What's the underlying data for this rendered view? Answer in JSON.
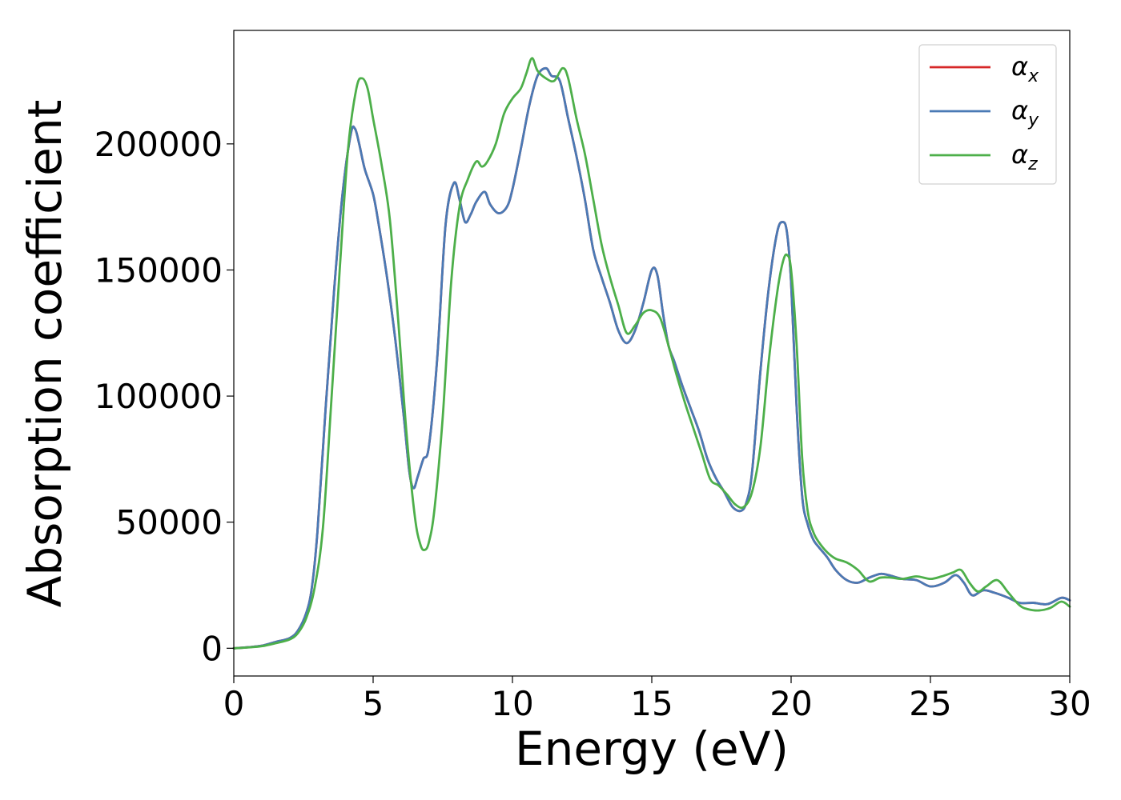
{
  "chart_data": {
    "type": "line",
    "title": "",
    "xlabel": "Energy (eV)",
    "ylabel": "Absorption coefficient",
    "xlim": [
      0,
      30
    ],
    "ylim": [
      -11000,
      245000
    ],
    "xticks": [
      0,
      5,
      10,
      15,
      20,
      25,
      30
    ],
    "yticks": [
      0,
      50000,
      100000,
      150000,
      200000
    ],
    "xtick_labels": [
      "0",
      "5",
      "10",
      "15",
      "20",
      "25",
      "30"
    ],
    "ytick_labels": [
      "0",
      "50000",
      "100000",
      "150000",
      "200000"
    ],
    "grid": false,
    "legend_position": "top-right",
    "series": [
      {
        "name": "αx",
        "legend_main": "α",
        "legend_sub": "x",
        "color": "#d62728",
        "x": [
          0,
          0.5,
          1.0,
          1.5,
          2.0,
          2.3,
          2.6,
          2.8,
          3.0,
          3.3,
          3.6,
          3.9,
          4.2,
          4.35,
          4.5,
          4.7,
          5.0,
          5.2,
          5.5,
          5.8,
          6.1,
          6.3,
          6.45,
          6.6,
          6.8,
          7.0,
          7.3,
          7.6,
          7.9,
          8.1,
          8.3,
          8.5,
          8.7,
          9.0,
          9.2,
          9.5,
          9.8,
          10.0,
          10.3,
          10.6,
          10.9,
          11.2,
          11.4,
          11.7,
          12.0,
          12.3,
          12.6,
          12.9,
          13.2,
          13.5,
          13.8,
          14.1,
          14.4,
          14.7,
          15.0,
          15.2,
          15.4,
          15.6,
          15.8,
          16.1,
          16.4,
          16.7,
          17.0,
          17.3,
          17.6,
          17.9,
          18.2,
          18.4,
          18.6,
          18.9,
          19.2,
          19.5,
          19.7,
          19.85,
          20.0,
          20.2,
          20.4,
          20.6,
          20.8,
          21.0,
          21.3,
          21.6,
          22.0,
          22.4,
          22.8,
          23.2,
          23.5,
          24.0,
          24.5,
          25.0,
          25.5,
          25.9,
          26.2,
          26.5,
          26.9,
          27.3,
          27.8,
          28.2,
          28.7,
          29.2,
          29.7,
          30.0
        ],
        "values": [
          0,
          400,
          1000,
          2500,
          4000,
          7000,
          14000,
          24000,
          46000,
          96000,
          142000,
          180000,
          204000,
          206000,
          200000,
          190000,
          180000,
          168000,
          147000,
          122000,
          92000,
          70000,
          63500,
          68000,
          75000,
          80000,
          115000,
          168000,
          184500,
          178000,
          169000,
          172000,
          177000,
          181000,
          176000,
          172500,
          175000,
          182000,
          198000,
          215000,
          227000,
          230000,
          227000,
          225000,
          210000,
          195000,
          178000,
          158000,
          147000,
          137000,
          126000,
          121000,
          126000,
          137000,
          150000,
          148000,
          133000,
          120000,
          114000,
          104000,
          95000,
          86000,
          75000,
          67500,
          62000,
          56000,
          54500,
          58000,
          70000,
          110000,
          143000,
          165000,
          169000,
          165000,
          145000,
          95000,
          60000,
          49000,
          43000,
          40000,
          36000,
          31000,
          27000,
          26000,
          28000,
          29500,
          29000,
          27500,
          27000,
          24500,
          26000,
          29000,
          26000,
          21000,
          23000,
          22000,
          20000,
          18000,
          18000,
          17500,
          20000,
          19000
        ]
      },
      {
        "name": "αy",
        "legend_main": "α",
        "legend_sub": "y",
        "color": "#4a7ab5",
        "x": [
          0,
          0.5,
          1.0,
          1.5,
          2.0,
          2.3,
          2.6,
          2.8,
          3.0,
          3.3,
          3.6,
          3.9,
          4.2,
          4.35,
          4.5,
          4.7,
          5.0,
          5.2,
          5.5,
          5.8,
          6.1,
          6.3,
          6.45,
          6.6,
          6.8,
          7.0,
          7.3,
          7.6,
          7.9,
          8.1,
          8.3,
          8.5,
          8.7,
          9.0,
          9.2,
          9.5,
          9.8,
          10.0,
          10.3,
          10.6,
          10.9,
          11.2,
          11.4,
          11.7,
          12.0,
          12.3,
          12.6,
          12.9,
          13.2,
          13.5,
          13.8,
          14.1,
          14.4,
          14.7,
          15.0,
          15.2,
          15.4,
          15.6,
          15.8,
          16.1,
          16.4,
          16.7,
          17.0,
          17.3,
          17.6,
          17.9,
          18.2,
          18.4,
          18.6,
          18.9,
          19.2,
          19.5,
          19.7,
          19.85,
          20.0,
          20.2,
          20.4,
          20.6,
          20.8,
          21.0,
          21.3,
          21.6,
          22.0,
          22.4,
          22.8,
          23.2,
          23.5,
          24.0,
          24.5,
          25.0,
          25.5,
          25.9,
          26.2,
          26.5,
          26.9,
          27.3,
          27.8,
          28.2,
          28.7,
          29.2,
          29.7,
          30.0
        ],
        "values": [
          0,
          400,
          1000,
          2500,
          4000,
          7000,
          14000,
          24000,
          46000,
          96000,
          142000,
          180000,
          204000,
          206000,
          200000,
          190000,
          180000,
          168000,
          147000,
          122000,
          92000,
          70000,
          63500,
          68000,
          75000,
          80000,
          115000,
          168000,
          184500,
          178000,
          169000,
          172000,
          177000,
          181000,
          176000,
          172500,
          175000,
          182000,
          198000,
          215000,
          227000,
          230000,
          227000,
          225000,
          210000,
          195000,
          178000,
          158000,
          147000,
          137000,
          126000,
          121000,
          126000,
          137000,
          150000,
          148000,
          133000,
          120000,
          114000,
          104000,
          95000,
          86000,
          75000,
          67500,
          62000,
          56000,
          54500,
          58000,
          70000,
          110000,
          143000,
          165000,
          169000,
          165000,
          145000,
          95000,
          60000,
          49000,
          43000,
          40000,
          36000,
          31000,
          27000,
          26000,
          28000,
          29500,
          29000,
          27500,
          27000,
          24500,
          26000,
          29000,
          26000,
          21000,
          23000,
          22000,
          20000,
          18000,
          18000,
          17500,
          20000,
          19000
        ]
      },
      {
        "name": "αz",
        "legend_main": "α",
        "legend_sub": "z",
        "color": "#4daf4a",
        "x": [
          0,
          0.5,
          1.0,
          1.5,
          2.0,
          2.3,
          2.6,
          2.9,
          3.2,
          3.5,
          3.8,
          4.1,
          4.4,
          4.6,
          4.8,
          5.0,
          5.3,
          5.6,
          5.9,
          6.2,
          6.5,
          6.7,
          6.85,
          7.0,
          7.2,
          7.5,
          7.8,
          8.1,
          8.4,
          8.7,
          8.9,
          9.1,
          9.4,
          9.7,
          10.0,
          10.3,
          10.5,
          10.7,
          10.9,
          11.2,
          11.5,
          11.8,
          12.0,
          12.3,
          12.6,
          12.9,
          13.2,
          13.5,
          13.8,
          14.1,
          14.4,
          14.7,
          15.0,
          15.3,
          15.6,
          15.9,
          16.2,
          16.5,
          16.8,
          17.1,
          17.4,
          17.7,
          18.0,
          18.3,
          18.6,
          18.9,
          19.2,
          19.5,
          19.7,
          19.85,
          20.0,
          20.2,
          20.4,
          20.6,
          20.8,
          21.0,
          21.3,
          21.6,
          22.0,
          22.4,
          22.8,
          23.2,
          23.6,
          24.0,
          24.5,
          25.0,
          25.4,
          25.8,
          26.1,
          26.4,
          26.7,
          27.0,
          27.4,
          27.8,
          28.2,
          28.5,
          28.9,
          29.3,
          29.7,
          30.0
        ],
        "values": [
          0,
          300,
          800,
          2000,
          3500,
          6000,
          12000,
          24000,
          48000,
          98000,
          150000,
          198000,
          222000,
          226000,
          222000,
          210000,
          192000,
          170000,
          130000,
          85000,
          52000,
          41000,
          39000,
          42000,
          55000,
          92000,
          145000,
          175000,
          186000,
          193000,
          191000,
          193000,
          200000,
          212000,
          218000,
          222000,
          228000,
          234000,
          229000,
          226000,
          225000,
          230000,
          226000,
          210000,
          196000,
          178000,
          160000,
          147000,
          136000,
          125000,
          128000,
          133000,
          134000,
          131000,
          120000,
          108000,
          97000,
          87000,
          77000,
          67000,
          64500,
          61000,
          57000,
          56000,
          62000,
          80000,
          114000,
          141000,
          153000,
          156000,
          150000,
          120000,
          75000,
          54000,
          46000,
          42000,
          38000,
          35500,
          34000,
          31000,
          26500,
          28000,
          28000,
          27500,
          28500,
          27500,
          28500,
          30000,
          31000,
          26000,
          22500,
          24500,
          27000,
          22000,
          17000,
          15500,
          15000,
          16000,
          18500,
          16500
        ]
      }
    ]
  }
}
